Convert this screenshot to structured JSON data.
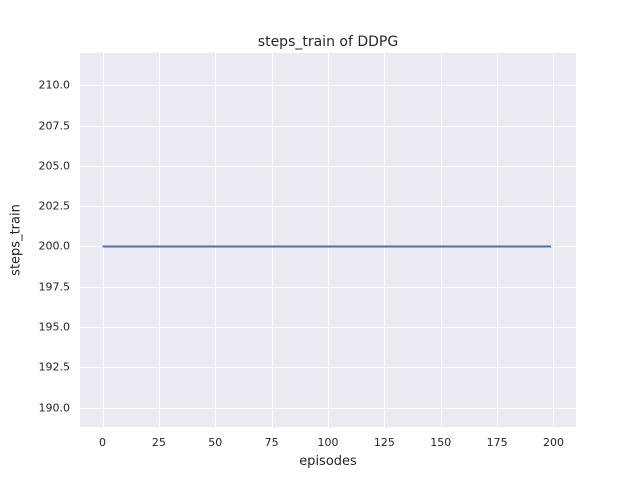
{
  "chart_data": {
    "type": "line",
    "title": "steps_train of DDPG",
    "xlabel": "episodes",
    "ylabel": "steps_train",
    "x": [
      0,
      199
    ],
    "series": [
      {
        "name": "steps_train",
        "values": [
          200,
          200
        ]
      }
    ],
    "line_color": "#4c72b0",
    "line_width": 2,
    "plot_background": "#eaeaf2",
    "grid_color": "#ffffff",
    "grid": true,
    "xlim": [
      -10,
      210
    ],
    "ylim": [
      188.8,
      212.0
    ],
    "xtick_values": [
      0,
      25,
      50,
      75,
      100,
      125,
      150,
      175,
      200
    ],
    "xtick_labels": [
      "0",
      "25",
      "50",
      "75",
      "100",
      "125",
      "150",
      "175",
      "200"
    ],
    "ytick_values": [
      190.0,
      192.5,
      195.0,
      197.5,
      200.0,
      202.5,
      205.0,
      207.5,
      210.0
    ],
    "ytick_labels": [
      "190.0",
      "192.5",
      "195.0",
      "197.5",
      "200.0",
      "202.5",
      "205.0",
      "207.5",
      "210.0"
    ]
  }
}
